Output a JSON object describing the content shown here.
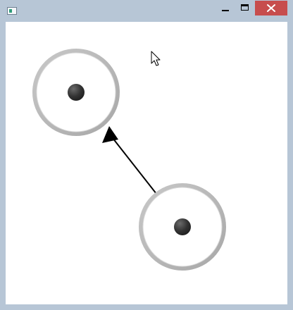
{
  "window": {
    "title": "",
    "controls": {
      "minimize": "minimize-icon",
      "maximize": "maximize-icon",
      "close": "close-icon"
    },
    "close_color": "#c74d4d",
    "frame_color": "#b7c6d6"
  },
  "canvas": {
    "background": "#ffffff",
    "nodes": [
      {
        "name": "source-node"
      },
      {
        "name": "target-node"
      }
    ],
    "edge": {
      "from": "source-node",
      "to": "target-node",
      "arrowhead": "filled"
    },
    "cursor": "arrow-cursor-icon"
  }
}
